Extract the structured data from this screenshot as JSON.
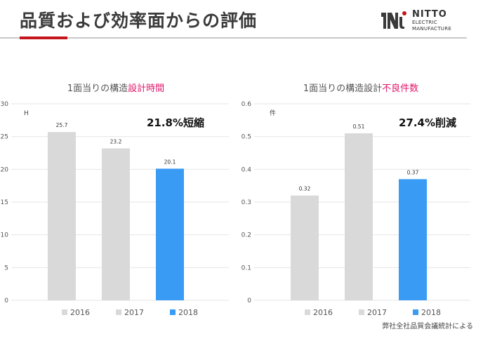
{
  "header": {
    "title": "品質および効率面からの評価",
    "logo": {
      "name": "NITTO",
      "line1": "ELECTRIC",
      "line2": "MANUFACTURE",
      "mark_color": "#c4161c",
      "brand_color": "#3a3a3a"
    }
  },
  "accent_color": "#c4161c",
  "chart_data": [
    {
      "type": "bar",
      "title_prefix": "1面当りの構造",
      "title_highlight": "設計時間",
      "title_highlight_color": "#e0176b",
      "unit": "H",
      "callout": "21.8%短縮",
      "categories": [
        "2016",
        "2017",
        "2018"
      ],
      "values": [
        25.7,
        23.2,
        20.1
      ],
      "data_labels": [
        "25.7",
        "23.2",
        "20.1"
      ],
      "ylim": [
        0,
        30
      ],
      "yticks": [
        "0",
        "5",
        "10",
        "15",
        "20",
        "25",
        "30"
      ],
      "colors": [
        "#d9d9d9",
        "#d9d9d9",
        "#3a9bf5"
      ],
      "legend": [
        "2016",
        "2017",
        "2018"
      ],
      "grid": true,
      "legend_position": "bottom"
    },
    {
      "type": "bar",
      "title_prefix": "1面当りの構造設計",
      "title_highlight": "不良件数",
      "title_highlight_color": "#e0176b",
      "unit": "件",
      "callout": "27.4%削減",
      "categories": [
        "2016",
        "2017",
        "2018"
      ],
      "values": [
        0.32,
        0.51,
        0.37
      ],
      "data_labels": [
        "0.32",
        "0.51",
        "0.37"
      ],
      "ylim": [
        0,
        0.6
      ],
      "yticks": [
        "0",
        "0.1",
        "0.2",
        "0.3",
        "0.4",
        "0.5",
        "0.6"
      ],
      "colors": [
        "#d9d9d9",
        "#d9d9d9",
        "#3a9bf5"
      ],
      "legend": [
        "2016",
        "2017",
        "2018"
      ],
      "grid": true,
      "legend_position": "bottom"
    }
  ],
  "footnote": "弊社全社品質会議統計による"
}
